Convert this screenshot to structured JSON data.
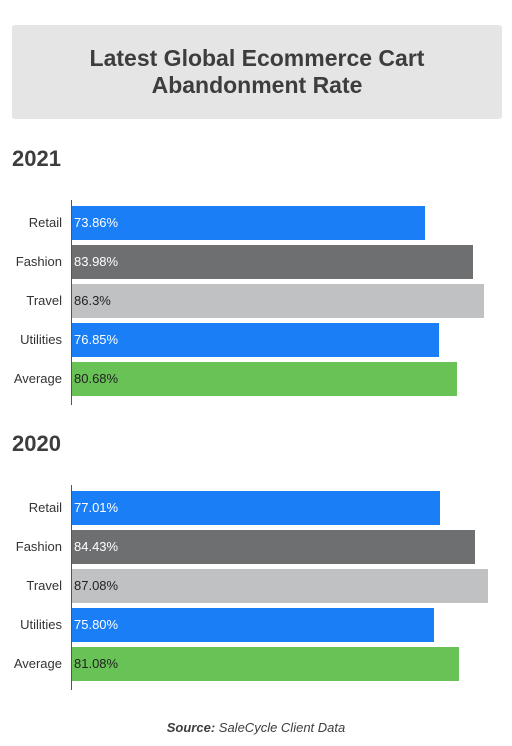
{
  "title": "Latest Global Ecommerce Cart Abandonment Rate",
  "source_prefix": "Source:",
  "source_text": "SaleCycle Client Data",
  "colors": {
    "blue": "#1a7ef7",
    "dark_gray": "#6e6f71",
    "light_gray": "#bfc1c3",
    "green": "#69c256"
  },
  "chart_data": [
    {
      "type": "bar",
      "orientation": "horizontal",
      "title": "2021",
      "categories": [
        "Retail",
        "Fashion",
        "Travel",
        "Utilities",
        "Average"
      ],
      "values": [
        73.86,
        83.98,
        86.3,
        76.85,
        80.68
      ],
      "value_labels": [
        "73.86%",
        "83.98%",
        "86.3%",
        "76.85%",
        "80.68%"
      ],
      "bar_colors": [
        "#1a7ef7",
        "#6e6f71",
        "#bfc1c3",
        "#1a7ef7",
        "#69c256"
      ],
      "label_colors": [
        "#ffffff",
        "#ffffff",
        "#222222",
        "#ffffff",
        "#222222"
      ],
      "xlim": [
        0,
        88
      ]
    },
    {
      "type": "bar",
      "orientation": "horizontal",
      "title": "2020",
      "categories": [
        "Retail",
        "Fashion",
        "Travel",
        "Utilities",
        "Average"
      ],
      "values": [
        77.01,
        84.43,
        87.08,
        75.8,
        81.08
      ],
      "value_labels": [
        "77.01%",
        "84.43%",
        "87.08%",
        "75.80%",
        "81.08%"
      ],
      "bar_colors": [
        "#1a7ef7",
        "#6e6f71",
        "#bfc1c3",
        "#1a7ef7",
        "#69c256"
      ],
      "label_colors": [
        "#ffffff",
        "#ffffff",
        "#222222",
        "#ffffff",
        "#222222"
      ],
      "xlim": [
        0,
        88
      ]
    }
  ]
}
